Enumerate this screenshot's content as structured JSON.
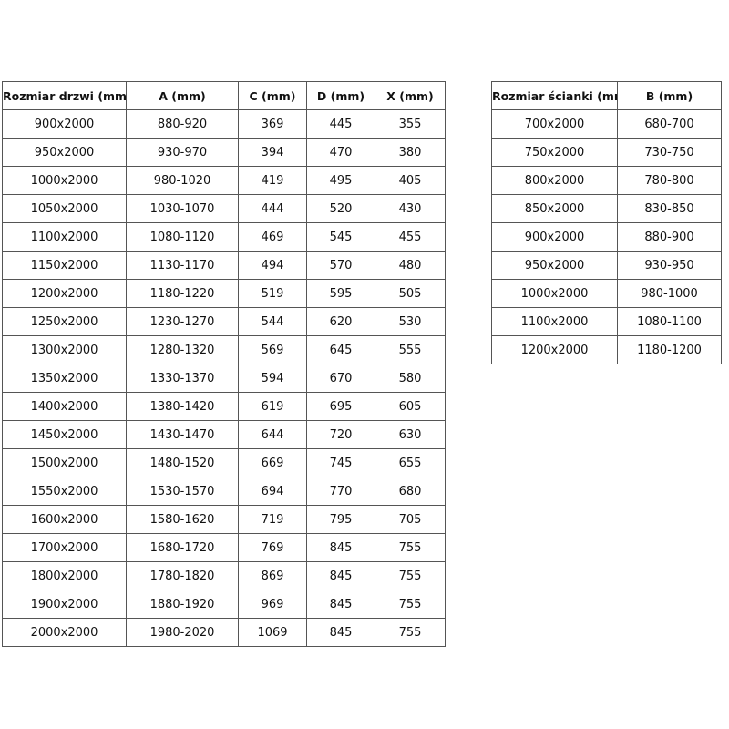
{
  "door_table": {
    "headers": [
      "Rozmiar drzwi (mm)",
      "A (mm)",
      "C (mm)",
      "D (mm)",
      "X (mm)"
    ],
    "rows": [
      [
        "900x2000",
        "880-920",
        "369",
        "445",
        "355"
      ],
      [
        "950x2000",
        "930-970",
        "394",
        "470",
        "380"
      ],
      [
        "1000x2000",
        "980-1020",
        "419",
        "495",
        "405"
      ],
      [
        "1050x2000",
        "1030-1070",
        "444",
        "520",
        "430"
      ],
      [
        "1100x2000",
        "1080-1120",
        "469",
        "545",
        "455"
      ],
      [
        "1150x2000",
        "1130-1170",
        "494",
        "570",
        "480"
      ],
      [
        "1200x2000",
        "1180-1220",
        "519",
        "595",
        "505"
      ],
      [
        "1250x2000",
        "1230-1270",
        "544",
        "620",
        "530"
      ],
      [
        "1300x2000",
        "1280-1320",
        "569",
        "645",
        "555"
      ],
      [
        "1350x2000",
        "1330-1370",
        "594",
        "670",
        "580"
      ],
      [
        "1400x2000",
        "1380-1420",
        "619",
        "695",
        "605"
      ],
      [
        "1450x2000",
        "1430-1470",
        "644",
        "720",
        "630"
      ],
      [
        "1500x2000",
        "1480-1520",
        "669",
        "745",
        "655"
      ],
      [
        "1550x2000",
        "1530-1570",
        "694",
        "770",
        "680"
      ],
      [
        "1600x2000",
        "1580-1620",
        "719",
        "795",
        "705"
      ],
      [
        "1700x2000",
        "1680-1720",
        "769",
        "845",
        "755"
      ],
      [
        "1800x2000",
        "1780-1820",
        "869",
        "845",
        "755"
      ],
      [
        "1900x2000",
        "1880-1920",
        "969",
        "845",
        "755"
      ],
      [
        "2000x2000",
        "1980-2020",
        "1069",
        "845",
        "755"
      ]
    ]
  },
  "wall_table": {
    "headers": [
      "Rozmiar ścianki (mm)",
      "B (mm)"
    ],
    "rows": [
      [
        "700x2000",
        "680-700"
      ],
      [
        "750x2000",
        "730-750"
      ],
      [
        "800x2000",
        "780-800"
      ],
      [
        "850x2000",
        "830-850"
      ],
      [
        "900x2000",
        "880-900"
      ],
      [
        "950x2000",
        "930-950"
      ],
      [
        "1000x2000",
        "980-1000"
      ],
      [
        "1100x2000",
        "1080-1100"
      ],
      [
        "1200x2000",
        "1180-1200"
      ]
    ]
  }
}
